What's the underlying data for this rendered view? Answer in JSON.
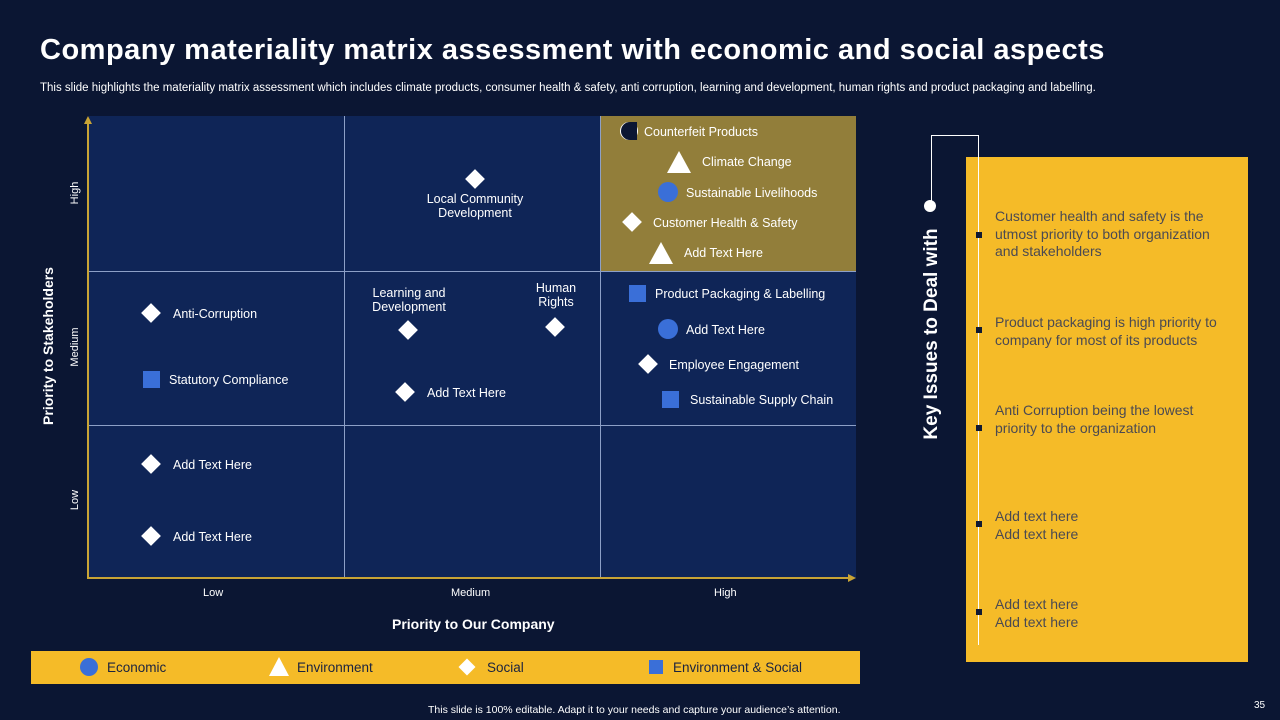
{
  "title": "Company materiality matrix assessment with economic and social aspects",
  "subtitle": "This slide highlights the materiality matrix assessment which includes climate products, consumer health & safety,  anti corruption, learning and development, human rights and product packaging and labelling.",
  "matrix": {
    "x_title": "Priority to Our Company",
    "y_title": "Priority to Stakeholders",
    "x_ticks": [
      "Low",
      "Medium",
      "High"
    ],
    "y_ticks": [
      "High",
      "Medium",
      "Low"
    ],
    "items": [
      {
        "label": "Counterfeit Products",
        "shape": "halfcircle",
        "category": "Economic"
      },
      {
        "label": "Climate Change",
        "shape": "triangle",
        "category": "Environment"
      },
      {
        "label": "Sustainable Livelihoods",
        "shape": "circle",
        "category": "Economic"
      },
      {
        "label": "Customer Health & Safety",
        "shape": "diamond",
        "category": "Social"
      },
      {
        "label": "Add Text Here",
        "shape": "triangle",
        "category": "Environment"
      },
      {
        "label": "Local Community Development",
        "shape": "diamond",
        "category": "Social"
      },
      {
        "label": "Learning and Development",
        "shape": "diamond",
        "category": "Social"
      },
      {
        "label": "Human Rights",
        "shape": "diamond",
        "category": "Social"
      },
      {
        "label": "Add Text Here",
        "shape": "diamond",
        "category": "Social"
      },
      {
        "label": "Product Packaging & Labelling",
        "shape": "square",
        "category": "Environment & Social"
      },
      {
        "label": "Add Text Here",
        "shape": "circle",
        "category": "Economic"
      },
      {
        "label": "Employee Engagement",
        "shape": "diamond",
        "category": "Social"
      },
      {
        "label": "Sustainable Supply Chain",
        "shape": "square",
        "category": "Environment & Social"
      },
      {
        "label": "Anti-Corruption",
        "shape": "diamond",
        "category": "Social"
      },
      {
        "label": "Statutory Compliance",
        "shape": "square",
        "category": "Environment & Social"
      },
      {
        "label": "Add Text Here",
        "shape": "diamond",
        "category": "Social"
      },
      {
        "label": "Add Text Here",
        "shape": "diamond",
        "category": "Social"
      }
    ]
  },
  "legend": [
    "Economic",
    "Environment",
    "Social",
    "Environment  & Social"
  ],
  "key_issues": {
    "title": "Key Issues to Deal with",
    "points": [
      "Customer health and safety is the utmost priority to both organization and stakeholders",
      "Product packaging is high priority to company for most of its products",
      "Anti Corruption being the lowest priority to the organization",
      "Add text here\nAdd text here",
      "Add text here\nAdd text here"
    ]
  },
  "footer": "This slide is 100% editable.  Adapt it to your needs and capture your audience’s attention.",
  "page_number": "35",
  "colors": {
    "background": "#0b1633",
    "cell": "#0f2557",
    "highlight_cell": "#927e3a",
    "accent_yellow": "#f5bb28",
    "marker_blue": "#3a6fd8"
  }
}
